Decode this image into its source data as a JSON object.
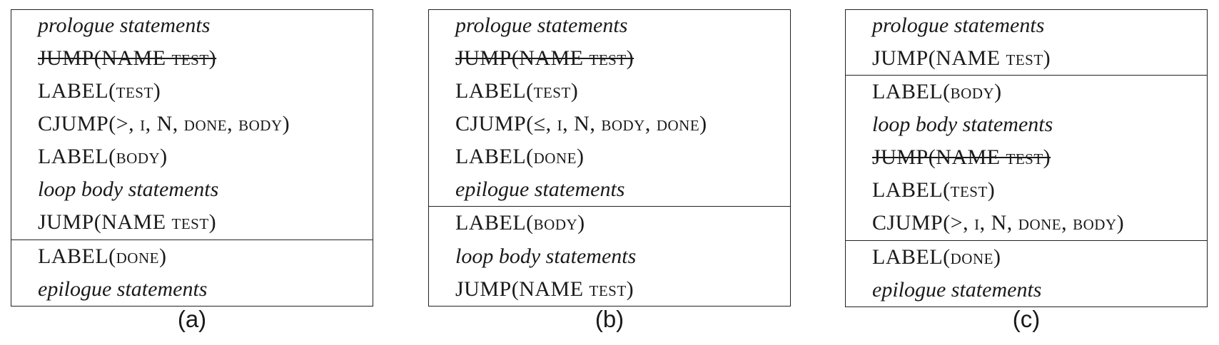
{
  "panels": [
    {
      "id": "a",
      "caption": "(a)",
      "blocks": [
        [
          {
            "text": "prologue statements",
            "style": "italic",
            "struck": false
          },
          {
            "text": "JUMP(NAME test)",
            "style": "code",
            "struck": true
          },
          {
            "text": "LABEL(test)",
            "style": "code",
            "struck": false
          },
          {
            "text": "CJUMP(>, i, N, done, body)",
            "style": "code",
            "struck": false
          },
          {
            "text": "LABEL(body)",
            "style": "code",
            "struck": false
          },
          {
            "text": "loop body statements",
            "style": "italic",
            "struck": false
          },
          {
            "text": "JUMP(NAME test)",
            "style": "code",
            "struck": false
          }
        ],
        [
          {
            "text": "LABEL(done)",
            "style": "code",
            "struck": false
          },
          {
            "text": "epilogue statements",
            "style": "italic",
            "struck": false
          }
        ]
      ]
    },
    {
      "id": "b",
      "caption": "(b)",
      "blocks": [
        [
          {
            "text": "prologue statements",
            "style": "italic",
            "struck": false
          },
          {
            "text": "JUMP(NAME test)",
            "style": "code",
            "struck": true
          },
          {
            "text": "LABEL(test)",
            "style": "code",
            "struck": false
          },
          {
            "text": "CJUMP(≤, i, N, body, done)",
            "style": "code",
            "struck": false
          },
          {
            "text": "LABEL(done)",
            "style": "code",
            "struck": false
          },
          {
            "text": "epilogue statements",
            "style": "italic",
            "struck": false
          }
        ],
        [
          {
            "text": "LABEL(body)",
            "style": "code",
            "struck": false
          },
          {
            "text": "loop body statements",
            "style": "italic",
            "struck": false
          },
          {
            "text": "JUMP(NAME test)",
            "style": "code",
            "struck": false
          }
        ]
      ]
    },
    {
      "id": "c",
      "caption": "(c)",
      "blocks": [
        [
          {
            "text": "prologue statements",
            "style": "italic",
            "struck": false
          },
          {
            "text": "JUMP(NAME test)",
            "style": "code",
            "struck": false
          }
        ],
        [
          {
            "text": "LABEL(body)",
            "style": "code",
            "struck": false
          },
          {
            "text": "loop body statements",
            "style": "italic",
            "struck": false
          },
          {
            "text": "JUMP(NAME test)",
            "style": "code",
            "struck": true
          },
          {
            "text": "LABEL(test)",
            "style": "code",
            "struck": false
          },
          {
            "text": "CJUMP(>, i, N, done, body)",
            "style": "code",
            "struck": false
          }
        ],
        [
          {
            "text": "LABEL(done)",
            "style": "code",
            "struck": false
          },
          {
            "text": "epilogue statements",
            "style": "italic",
            "struck": false
          }
        ]
      ]
    }
  ]
}
